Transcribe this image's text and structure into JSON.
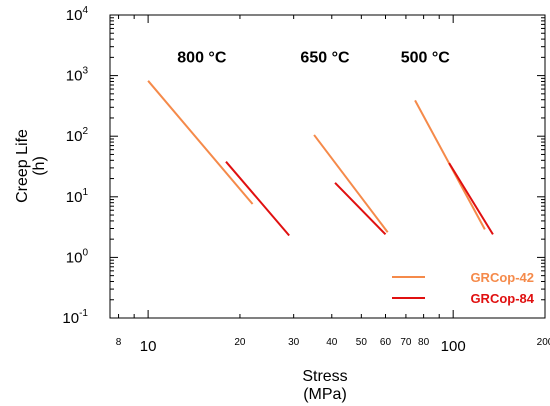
{
  "chart_data": {
    "type": "line",
    "title": "",
    "xlabel": "Stress",
    "xlabel_unit": "(MPa)",
    "ylabel": "Creep Life",
    "ylabel_unit": "(h)",
    "x_scale": "log",
    "y_scale": "log",
    "xlim": [
      7.5,
      200
    ],
    "ylim": [
      0.1,
      10000
    ],
    "grid": false,
    "legend_position": "bottom-right",
    "x_ticks": [
      {
        "value": 8,
        "label": "8",
        "major": false
      },
      {
        "value": 10,
        "label": "10",
        "major": true
      },
      {
        "value": 20,
        "label": "20",
        "major": false
      },
      {
        "value": 30,
        "label": "30",
        "major": false
      },
      {
        "value": 40,
        "label": "40",
        "major": false
      },
      {
        "value": 50,
        "label": "50",
        "major": false
      },
      {
        "value": 60,
        "label": "60",
        "major": false
      },
      {
        "value": 70,
        "label": "70",
        "major": false
      },
      {
        "value": 80,
        "label": "80",
        "major": false
      },
      {
        "value": 100,
        "label": "100",
        "major": true
      },
      {
        "value": 200,
        "label": "200",
        "major": false
      }
    ],
    "y_ticks": [
      {
        "value": 0.1,
        "base": "10",
        "exp": "-1"
      },
      {
        "value": 1,
        "base": "10",
        "exp": "0"
      },
      {
        "value": 10,
        "base": "10",
        "exp": "1"
      },
      {
        "value": 100,
        "base": "10",
        "exp": "2"
      },
      {
        "value": 1000,
        "base": "10",
        "exp": "3"
      },
      {
        "value": 10000,
        "base": "10",
        "exp": "4"
      }
    ],
    "annotations": [
      {
        "text": "800 °C",
        "x": 15,
        "y": 1650
      },
      {
        "text": "650 °C",
        "x": 38,
        "y": 1650
      },
      {
        "text": "500 °C",
        "x": 81,
        "y": 1650
      }
    ],
    "series": [
      {
        "name": "GRCop-42",
        "color": "#f58a4a",
        "segments": [
          [
            [
              10,
              820
            ],
            [
              22,
              7.6
            ]
          ],
          [
            [
              35,
              105
            ],
            [
              61,
              2.6
            ]
          ],
          [
            [
              75,
              390
            ],
            [
              127,
              2.9
            ]
          ]
        ]
      },
      {
        "name": "GRCop-84",
        "color": "#e01010",
        "segments": [
          [
            [
              18,
              38
            ],
            [
              29,
              2.3
            ]
          ],
          [
            [
              41,
              17
            ],
            [
              60,
              2.4
            ]
          ],
          [
            [
              97,
              36
            ],
            [
              135,
              2.4
            ]
          ]
        ]
      }
    ]
  }
}
